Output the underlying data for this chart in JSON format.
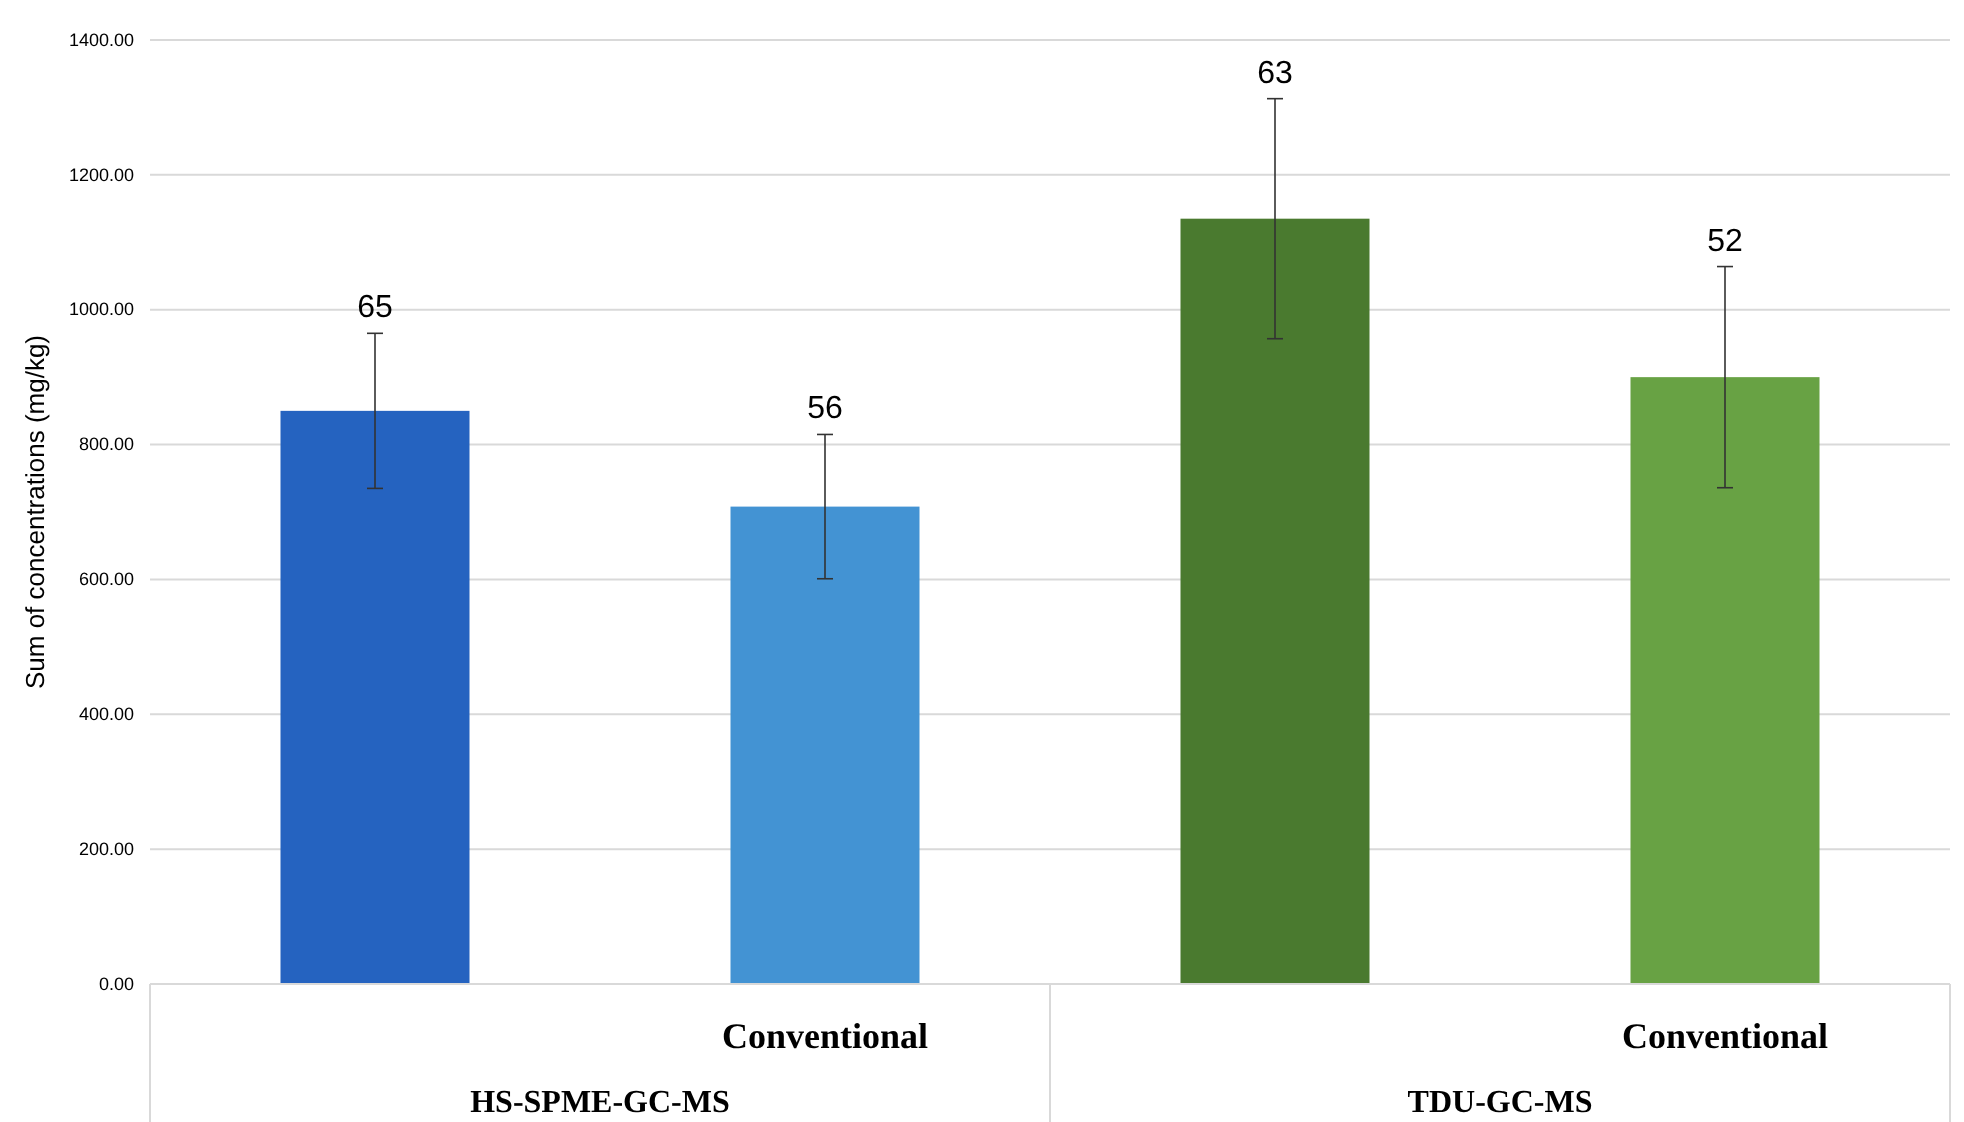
{
  "chart_data": {
    "type": "bar",
    "ylabel": "Sum of concentrations (mg/kg)",
    "categories": [
      null,
      "Conventional",
      null,
      "Conventional"
    ],
    "values": [
      850,
      708,
      1135,
      900
    ],
    "colors": [
      "#2563c0",
      "#4393d3",
      "#4a7a2f",
      "#68a244"
    ],
    "errors": [
      115,
      107,
      178,
      164
    ],
    "annotations": [
      "65",
      "56",
      "63",
      "52",
      "HS-SPME-GC-MS",
      "TDU-GC-MS"
    ],
    "ylim": [
      0,
      1400
    ],
    "yticks": [
      {
        "value": 0,
        "label": "0.00"
      },
      {
        "value": 200,
        "label": "200.00"
      },
      {
        "value": 400,
        "label": "400.00"
      },
      {
        "value": 600,
        "label": "600.00"
      },
      {
        "value": 800,
        "label": "800.00"
      },
      {
        "value": 1000,
        "label": "1000.00"
      },
      {
        "value": 1200,
        "label": "1200.00"
      },
      {
        "value": 1400,
        "label": "1400.00"
      }
    ],
    "grid": "y"
  }
}
